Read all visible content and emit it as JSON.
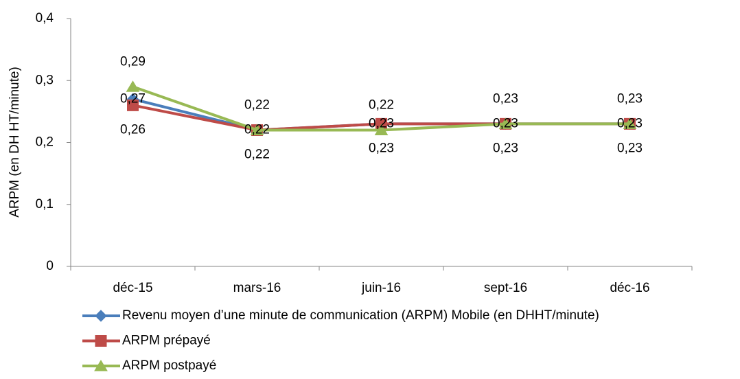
{
  "chart_data": {
    "type": "line",
    "ylabel": "ARPM (en DH HT/minute)",
    "categories": [
      "déc-15",
      "mars-16",
      "juin-16",
      "sept-16",
      "déc-16"
    ],
    "series": [
      {
        "name": "Revenu moyen d’une minute de communication (ARPM) Mobile (en DHHT/minute)",
        "color": "#4a7ebb",
        "marker": "diamond",
        "values": [
          0.27,
          0.22,
          0.23,
          0.23,
          0.23
        ],
        "value_labels": [
          "0,27",
          "0,22",
          "0,23",
          "0,23",
          "0,23"
        ]
      },
      {
        "name": "ARPM prépayé",
        "color": "#be4b48",
        "marker": "square",
        "values": [
          0.26,
          0.22,
          0.23,
          0.23,
          0.23
        ],
        "value_labels": [
          "0,26",
          "0,22",
          "0,23",
          "0,23",
          "0,23"
        ]
      },
      {
        "name": "ARPM postpayé",
        "color": "#98b954",
        "marker": "triangle",
        "values": [
          0.29,
          0.22,
          0.22,
          0.23,
          0.23
        ],
        "value_labels": [
          "0,29",
          "0,22",
          "0,22",
          "0,23",
          "0,23"
        ]
      }
    ],
    "ylim": [
      0,
      0.4
    ],
    "yticks": [
      0,
      {
        "value": 0.1,
        "label": "0,1"
      },
      {
        "value": 0.2,
        "label": "0,2"
      },
      {
        "value": 0.3,
        "label": "0,3"
      },
      {
        "value": 0.4,
        "label": "0,4"
      }
    ],
    "grid": false,
    "legend": "bottom"
  }
}
